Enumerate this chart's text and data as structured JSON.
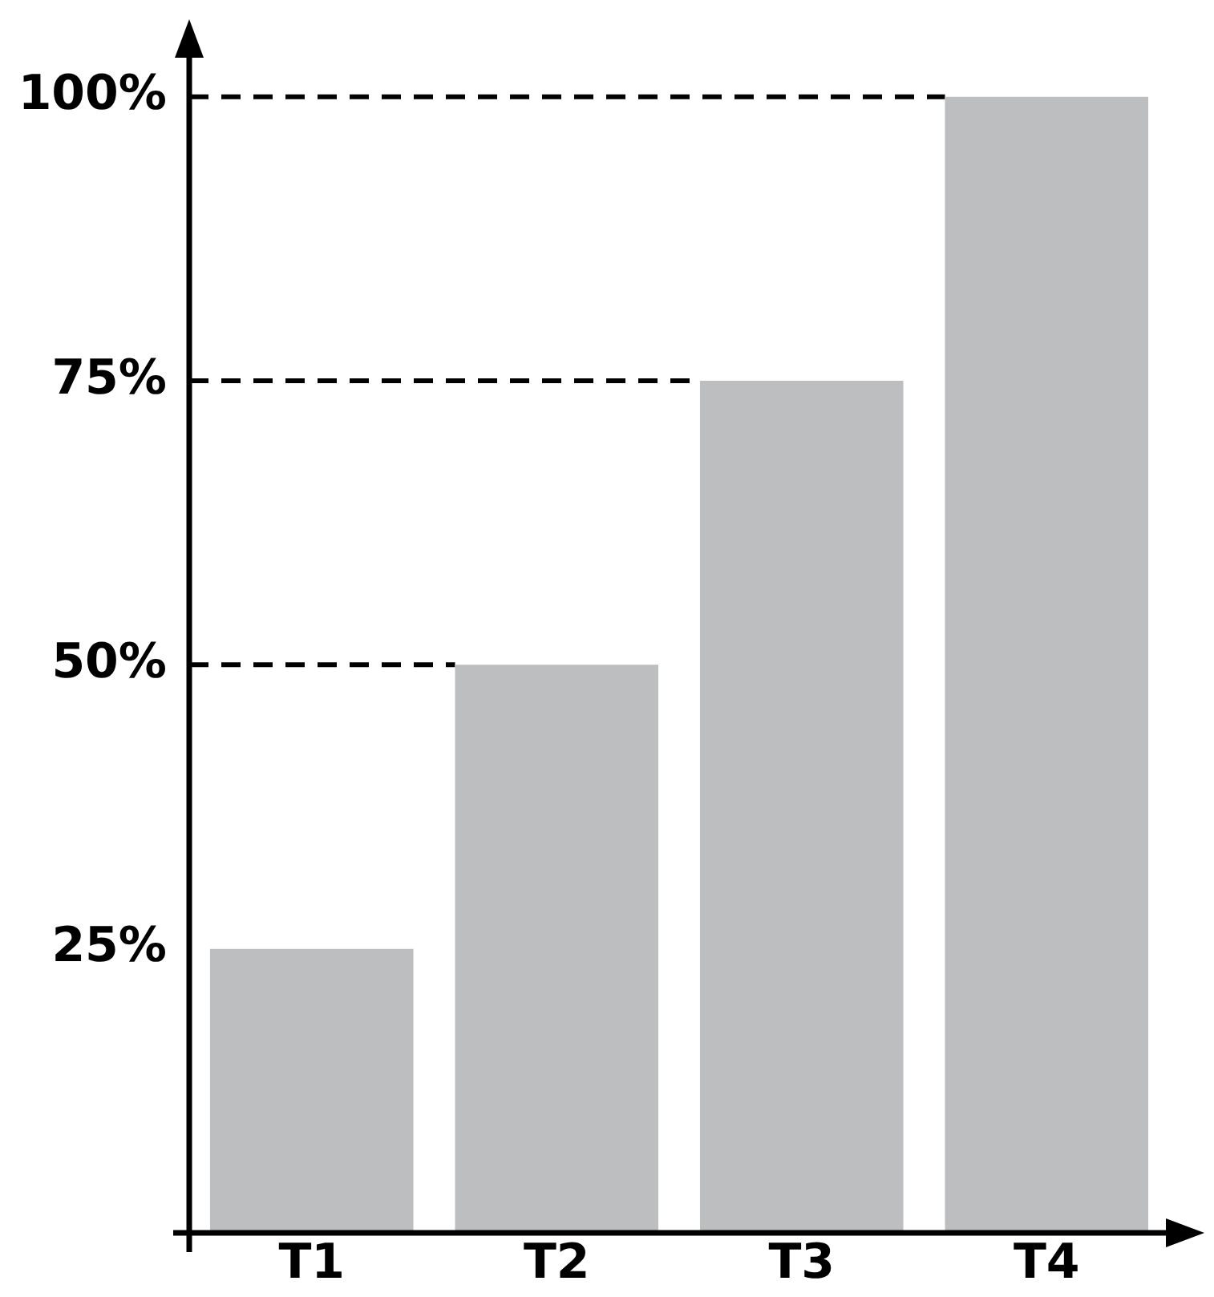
{
  "chart_data": {
    "type": "bar",
    "categories": [
      "T1",
      "T2",
      "T3",
      "T4"
    ],
    "values": [
      25,
      50,
      75,
      100
    ],
    "color": "#bcbec0",
    "ylim": [
      0,
      104
    ],
    "yticks": [
      {
        "value": 25,
        "label": "25%"
      },
      {
        "value": 50,
        "label": "50%"
      },
      {
        "value": 75,
        "label": "75%"
      },
      {
        "value": 100,
        "label": "100%"
      }
    ],
    "ref_lines": [
      {
        "axis": "y",
        "value": 50,
        "label": null,
        "line_style": "dashed",
        "color": "#000000"
      },
      {
        "axis": "y",
        "value": 75,
        "label": null,
        "line_style": "dashed",
        "color": "#000000"
      },
      {
        "axis": "y",
        "value": 100,
        "label": null,
        "line_style": "dashed",
        "color": "#000000"
      }
    ],
    "grid": false,
    "legend": false
  }
}
